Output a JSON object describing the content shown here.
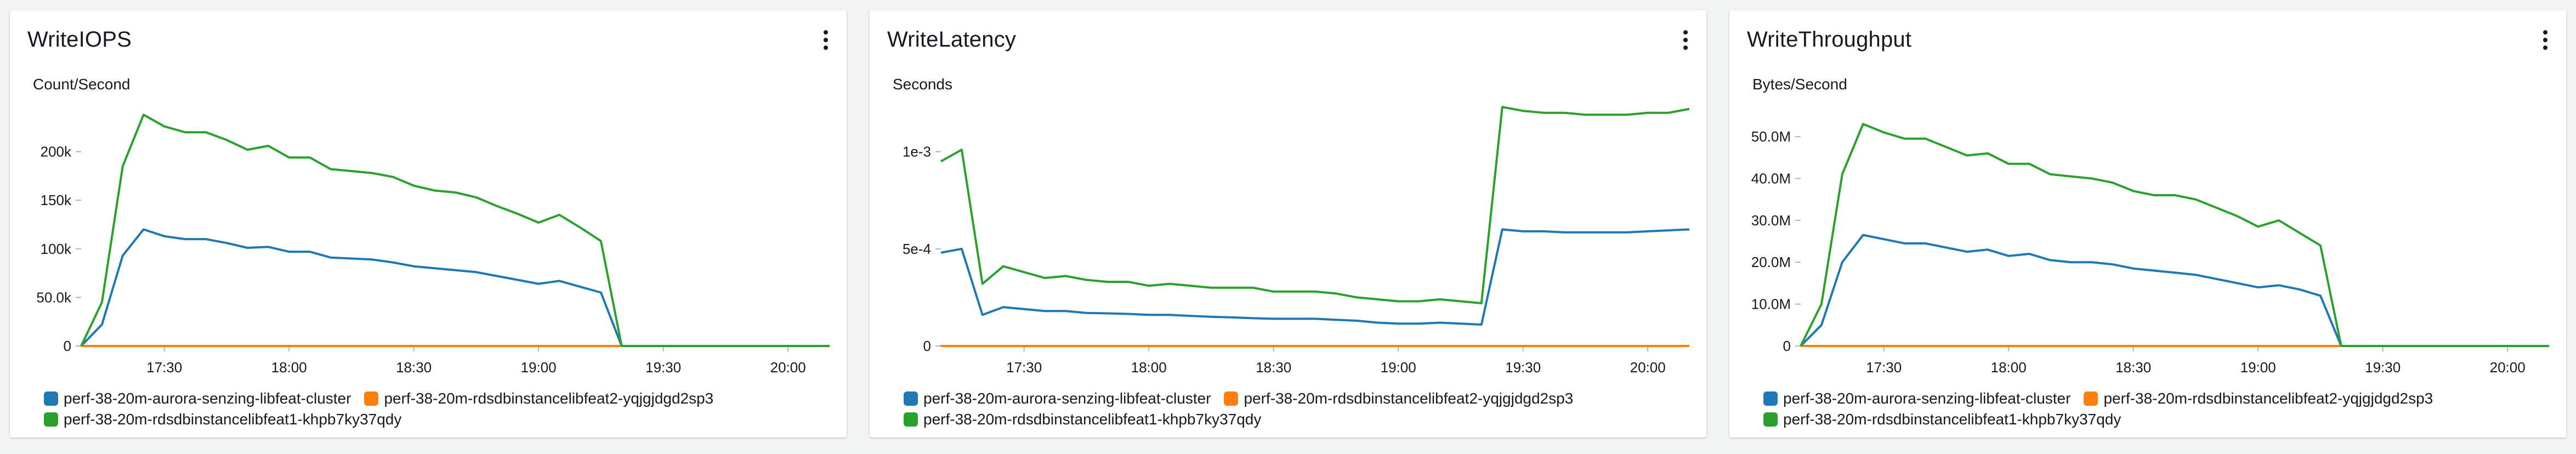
{
  "colors": {
    "s0": "#1f77b4",
    "s1": "#ff7f0e",
    "s2": "#2ca02c"
  },
  "widgets": [
    {
      "title": "WriteIOPS",
      "unit": "Count/Second",
      "legend": [
        "perf-38-20m-aurora-senzing-libfeat-cluster",
        "perf-38-20m-rdsdbinstancelibfeat2-yqjgjdgd2sp3",
        "perf-38-20m-rdsdbinstancelibfeat1-khpb7ky37qdy"
      ],
      "chart_data": {
        "type": "line",
        "x": [
          "17:10",
          "17:15",
          "17:20",
          "17:25",
          "17:30",
          "17:35",
          "17:40",
          "17:45",
          "17:50",
          "17:55",
          "18:00",
          "18:05",
          "18:10",
          "18:15",
          "18:20",
          "18:25",
          "18:30",
          "18:35",
          "18:40",
          "18:45",
          "18:50",
          "18:55",
          "19:00",
          "19:05",
          "19:10",
          "19:15",
          "19:20",
          "19:25",
          "19:30",
          "19:35",
          "19:40",
          "19:45",
          "19:50",
          "19:55",
          "20:00",
          "20:05",
          "20:10"
        ],
        "xticks": [
          "17:30",
          "18:00",
          "18:30",
          "19:00",
          "19:30",
          "20:00"
        ],
        "yticks": [
          0,
          50000,
          100000,
          150000,
          200000
        ],
        "ytick_labels": [
          "0",
          "50.0k",
          "100k",
          "150k",
          "200k"
        ],
        "ylim": [
          0,
          250000
        ],
        "series": [
          {
            "name": "perf-38-20m-aurora-senzing-libfeat-cluster",
            "values": [
              0,
              22000,
              93000,
              120000,
              113000,
              110000,
              110000,
              106000,
              101000,
              102000,
              97000,
              97000,
              91000,
              90000,
              89000,
              86000,
              82000,
              80000,
              78000,
              76000,
              72000,
              68000,
              64000,
              67000,
              61000,
              55000,
              0,
              0,
              0,
              0,
              0,
              0,
              0,
              0,
              0,
              0,
              0
            ]
          },
          {
            "name": "perf-38-20m-rdsdbinstancelibfeat2-yqjgjdgd2sp3",
            "values": [
              0,
              0,
              0,
              0,
              0,
              0,
              0,
              0,
              0,
              0,
              0,
              0,
              0,
              0,
              0,
              0,
              0,
              0,
              0,
              0,
              0,
              0,
              0,
              0,
              0,
              0,
              0,
              0,
              0,
              0,
              0,
              0,
              0,
              0,
              0,
              0,
              0
            ]
          },
          {
            "name": "perf-38-20m-rdsdbinstancelibfeat1-khpb7ky37qdy",
            "values": [
              0,
              45000,
              185000,
              238000,
              226000,
              220000,
              220000,
              212000,
              202000,
              206000,
              194000,
              194000,
              182000,
              180000,
              178000,
              174000,
              165000,
              160000,
              158000,
              153000,
              144000,
              136000,
              127000,
              135000,
              122000,
              108000,
              0,
              0,
              0,
              0,
              0,
              0,
              0,
              0,
              0,
              0,
              0
            ]
          }
        ]
      }
    },
    {
      "title": "WriteLatency",
      "unit": "Seconds",
      "legend": [
        "perf-38-20m-aurora-senzing-libfeat-cluster",
        "perf-38-20m-rdsdbinstancelibfeat2-yqjgjdgd2sp3",
        "perf-38-20m-rdsdbinstancelibfeat1-khpb7ky37qdy"
      ],
      "chart_data": {
        "type": "line",
        "x": [
          "17:10",
          "17:15",
          "17:20",
          "17:25",
          "17:30",
          "17:35",
          "17:40",
          "17:45",
          "17:50",
          "17:55",
          "18:00",
          "18:05",
          "18:10",
          "18:15",
          "18:20",
          "18:25",
          "18:30",
          "18:35",
          "18:40",
          "18:45",
          "18:50",
          "18:55",
          "19:00",
          "19:05",
          "19:10",
          "19:15",
          "19:20",
          "19:25",
          "19:30",
          "19:35",
          "19:40",
          "19:45",
          "19:50",
          "19:55",
          "20:00",
          "20:05",
          "20:10"
        ],
        "xticks": [
          "17:30",
          "18:00",
          "18:30",
          "19:00",
          "19:30",
          "20:00"
        ],
        "yticks": [
          0,
          0.0005,
          0.001
        ],
        "ytick_labels": [
          "0",
          "5e-4",
          "1e-3"
        ],
        "ylim": [
          0,
          0.00125
        ],
        "series": [
          {
            "name": "perf-38-20m-aurora-senzing-libfeat-cluster",
            "values": [
              0.00048,
              0.0005,
              0.00016,
              0.0002,
              0.00019,
              0.00018,
              0.00018,
              0.00017,
              0.000168,
              0.000165,
              0.00016,
              0.00016,
              0.000155,
              0.00015,
              0.000147,
              0.000143,
              0.00014,
              0.00014,
              0.00014,
              0.000135,
              0.00013,
              0.00012,
              0.000115,
              0.000115,
              0.00012,
              0.000115,
              0.00011,
              0.0006,
              0.00059,
              0.00059,
              0.000585,
              0.000585,
              0.000585,
              0.000585,
              0.00059,
              0.000595,
              0.0006
            ]
          },
          {
            "name": "perf-38-20m-rdsdbinstancelibfeat2-yqjgjdgd2sp3",
            "values": [
              0,
              0,
              0,
              0,
              0,
              0,
              0,
              0,
              0,
              0,
              0,
              0,
              0,
              0,
              0,
              0,
              0,
              0,
              0,
              0,
              0,
              0,
              0,
              0,
              0,
              0,
              0,
              0,
              0,
              0,
              0,
              0,
              0,
              0,
              0,
              0,
              0
            ]
          },
          {
            "name": "perf-38-20m-rdsdbinstancelibfeat1-khpb7ky37qdy",
            "values": [
              0.00095,
              0.00101,
              0.00032,
              0.00041,
              0.00038,
              0.00035,
              0.00036,
              0.00034,
              0.00033,
              0.00033,
              0.00031,
              0.00032,
              0.00031,
              0.0003,
              0.0003,
              0.0003,
              0.00028,
              0.00028,
              0.00028,
              0.00027,
              0.00025,
              0.00024,
              0.00023,
              0.00023,
              0.00024,
              0.00023,
              0.00022,
              0.00123,
              0.00121,
              0.0012,
              0.0012,
              0.00119,
              0.00119,
              0.00119,
              0.0012,
              0.0012,
              0.00122
            ]
          }
        ]
      }
    },
    {
      "title": "WriteThroughput",
      "unit": "Bytes/Second",
      "legend": [
        "perf-38-20m-aurora-senzing-libfeat-cluster",
        "perf-38-20m-rdsdbinstancelibfeat2-yqjgjdgd2sp3",
        "perf-38-20m-rdsdbinstancelibfeat1-khpb7ky37qdy"
      ],
      "chart_data": {
        "type": "line",
        "x": [
          "17:10",
          "17:15",
          "17:20",
          "17:25",
          "17:30",
          "17:35",
          "17:40",
          "17:45",
          "17:50",
          "17:55",
          "18:00",
          "18:05",
          "18:10",
          "18:15",
          "18:20",
          "18:25",
          "18:30",
          "18:35",
          "18:40",
          "18:45",
          "18:50",
          "18:55",
          "19:00",
          "19:05",
          "19:10",
          "19:15",
          "19:20",
          "19:25",
          "19:30",
          "19:35",
          "19:40",
          "19:45",
          "19:50",
          "19:55",
          "20:00",
          "20:05",
          "20:10"
        ],
        "xticks": [
          "17:30",
          "18:00",
          "18:30",
          "19:00",
          "19:30",
          "20:00"
        ],
        "yticks": [
          0,
          10000000,
          20000000,
          30000000,
          40000000,
          50000000
        ],
        "ytick_labels": [
          "0",
          "10.0M",
          "20.0M",
          "30.0M",
          "40.0M",
          "50.0M"
        ],
        "ylim": [
          0,
          58000000
        ],
        "series": [
          {
            "name": "perf-38-20m-aurora-senzing-libfeat-cluster",
            "values": [
              0,
              5000000,
              20000000,
              26500000,
              25500000,
              24500000,
              24500000,
              23500000,
              22500000,
              23000000,
              21500000,
              22000000,
              20500000,
              20000000,
              20000000,
              19500000,
              18500000,
              18000000,
              17500000,
              17000000,
              16000000,
              15000000,
              14000000,
              14500000,
              13500000,
              12000000,
              0,
              0,
              0,
              0,
              0,
              0,
              0,
              0,
              0,
              0,
              0
            ]
          },
          {
            "name": "perf-38-20m-rdsdbinstancelibfeat2-yqjgjdgd2sp3",
            "values": [
              0,
              0,
              0,
              0,
              0,
              0,
              0,
              0,
              0,
              0,
              0,
              0,
              0,
              0,
              0,
              0,
              0,
              0,
              0,
              0,
              0,
              0,
              0,
              0,
              0,
              0,
              0,
              0,
              0,
              0,
              0,
              0,
              0,
              0,
              0,
              0,
              0
            ]
          },
          {
            "name": "perf-38-20m-rdsdbinstancelibfeat1-khpb7ky37qdy",
            "values": [
              0,
              10000000,
              41000000,
              53000000,
              51000000,
              49500000,
              49500000,
              47500000,
              45500000,
              46000000,
              43500000,
              43500000,
              41000000,
              40500000,
              40000000,
              39000000,
              37000000,
              36000000,
              36000000,
              35000000,
              33000000,
              31000000,
              28500000,
              30000000,
              27000000,
              24000000,
              0,
              0,
              0,
              0,
              0,
              0,
              0,
              0,
              0,
              0,
              0
            ]
          }
        ]
      }
    }
  ]
}
